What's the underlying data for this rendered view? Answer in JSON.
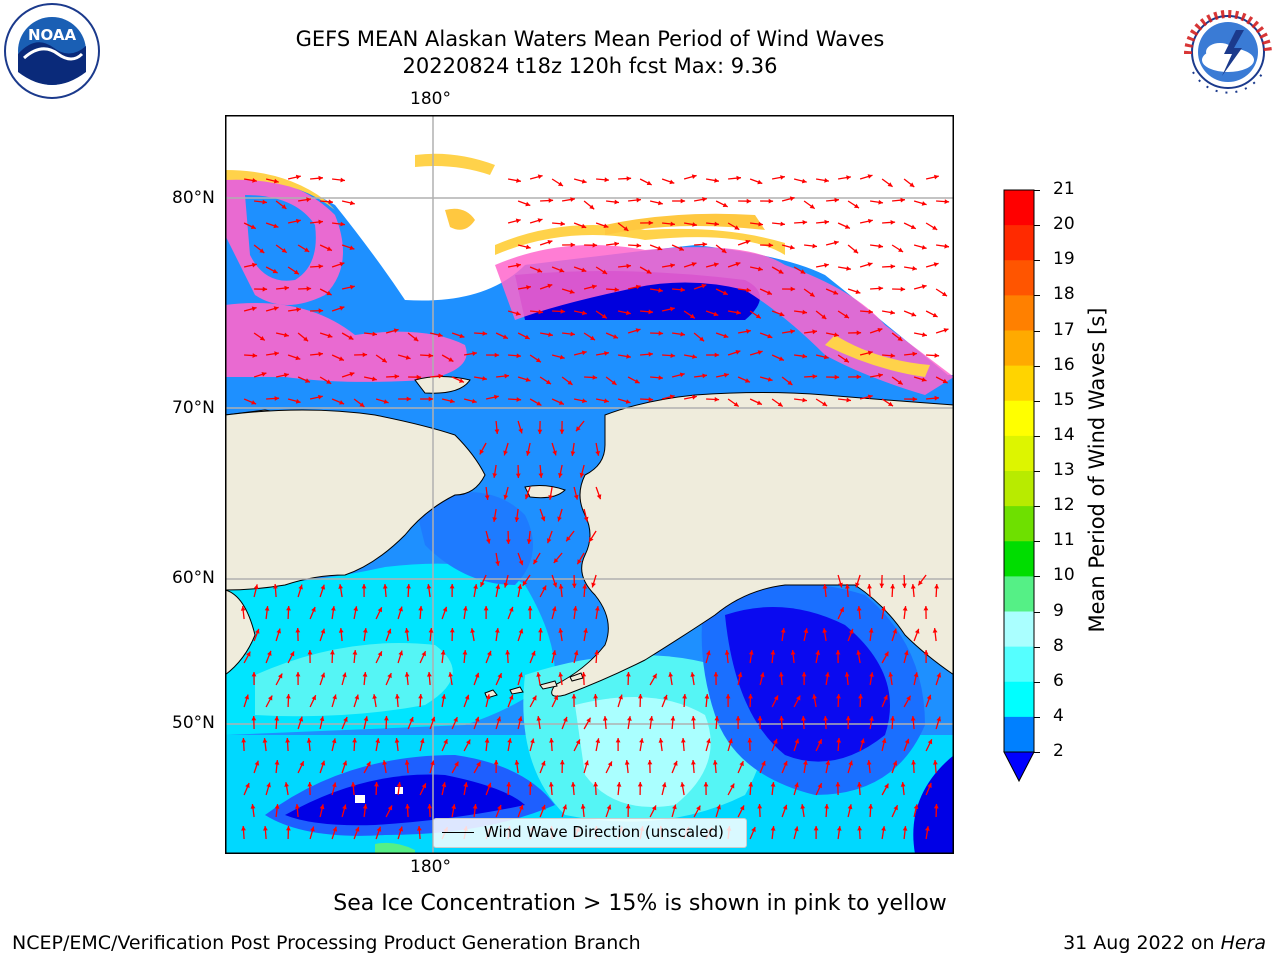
{
  "title": {
    "line1": "GEFS MEAN Alaskan Waters Mean Period of Wind Waves",
    "line2": "20220824 t18z 120h fcst   Max: 9.36"
  },
  "logos": {
    "left": {
      "text": "NOAA",
      "icon": "noaa-logo"
    },
    "right": {
      "text": "NATIONAL WEATHER SERVICE",
      "icon": "nws-logo"
    }
  },
  "map": {
    "lon_labels": [
      "180°",
      "180°"
    ],
    "lat_labels": [
      "80°N",
      "70°N",
      "60°N",
      "50°N"
    ],
    "legend_label": "Wind Wave Direction (unscaled)",
    "colors": {
      "land": "#efecdc",
      "ice_pink": "#ff66cc",
      "ice_yellow": "#ffd24a",
      "arrow": "#ff0000",
      "grid": "#b0b0b0"
    }
  },
  "colorbar": {
    "label": "Mean Period of Wind Waves [s]",
    "ticks": [
      "21",
      "20",
      "19",
      "18",
      "17",
      "16",
      "15",
      "14",
      "13",
      "12",
      "11",
      "10",
      "9",
      "8",
      "6",
      "4",
      "2"
    ],
    "colors": [
      "#ff0000",
      "#ff2a00",
      "#ff5500",
      "#ff8000",
      "#ffaa00",
      "#ffd400",
      "#ffff00",
      "#ddf500",
      "#b8eb00",
      "#6ee000",
      "#00dd00",
      "#55f086",
      "#aaffff",
      "#55ffff",
      "#00ffff",
      "#0080ff",
      "#0000ff"
    ]
  },
  "note": "Sea Ice Concentration > 15% is shown in pink to yellow",
  "footer": {
    "left": "NCEP/EMC/Verification Post Processing Product Generation Branch",
    "right_date": "31 Aug 2022 on ",
    "right_machine": "Hera"
  }
}
